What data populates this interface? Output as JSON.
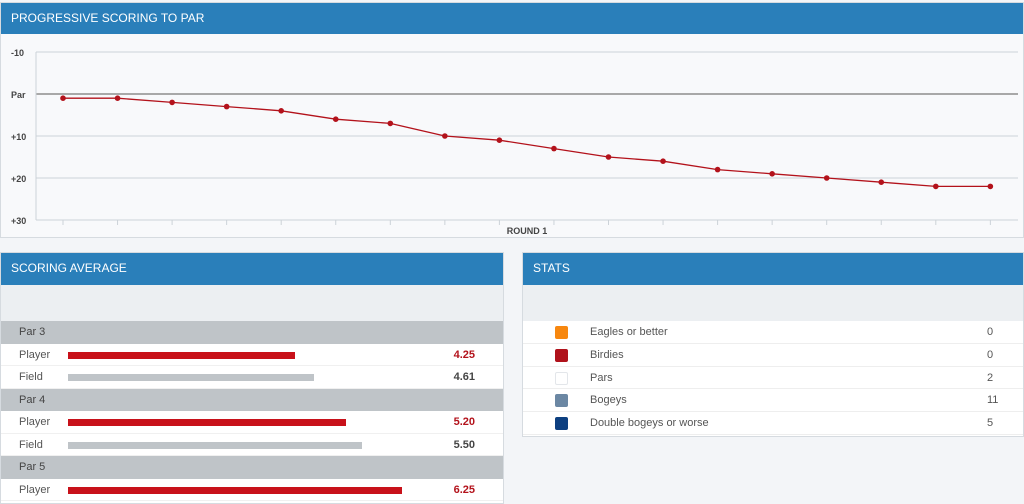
{
  "progressive": {
    "title": "PROGRESSIVE SCORING TO PAR"
  },
  "chart_data": {
    "type": "line",
    "title": "PROGRESSIVE SCORING TO PAR",
    "xlabel": "ROUND 1",
    "x": [
      1,
      2,
      3,
      4,
      5,
      6,
      7,
      8,
      9,
      10,
      11,
      12,
      13,
      14,
      15,
      16,
      17,
      18
    ],
    "series": [
      {
        "name": "Player",
        "values": [
          1,
          1,
          2,
          3,
          4,
          6,
          7,
          10,
          11,
          13,
          15,
          16,
          18,
          19,
          20,
          21,
          22,
          22
        ]
      }
    ],
    "ylim": [
      -10,
      30
    ],
    "yticks": [
      -10,
      0,
      10,
      20,
      30
    ],
    "ytick_labels": [
      "-10",
      "Par",
      "+10",
      "+20",
      "+30"
    ],
    "line_color": "#b3121b",
    "grid": true
  },
  "scoring_average": {
    "title": "SCORING AVERAGE",
    "groups": [
      {
        "label": "Par 3",
        "rows": [
          {
            "label": "Player",
            "value": "4.25"
          },
          {
            "label": "Field",
            "value": "4.61"
          }
        ]
      },
      {
        "label": "Par 4",
        "rows": [
          {
            "label": "Player",
            "value": "5.20"
          },
          {
            "label": "Field",
            "value": "5.50"
          }
        ]
      },
      {
        "label": "Par 5",
        "rows": [
          {
            "label": "Player",
            "value": "6.25"
          }
        ]
      }
    ],
    "player_color": "#c8111a",
    "field_color": "#bfc4c8"
  },
  "stats": {
    "title": "STATS",
    "rows": [
      {
        "label": "Eagles or better",
        "value": "0",
        "color": "#f7870f"
      },
      {
        "label": "Birdies",
        "value": "0",
        "color": "#b0121b"
      },
      {
        "label": "Pars",
        "value": "2",
        "color": "#ffffff"
      },
      {
        "label": "Bogeys",
        "value": "11",
        "color": "#6b87a3"
      },
      {
        "label": "Double bogeys or worse",
        "value": "5",
        "color": "#0d3f80"
      }
    ]
  }
}
